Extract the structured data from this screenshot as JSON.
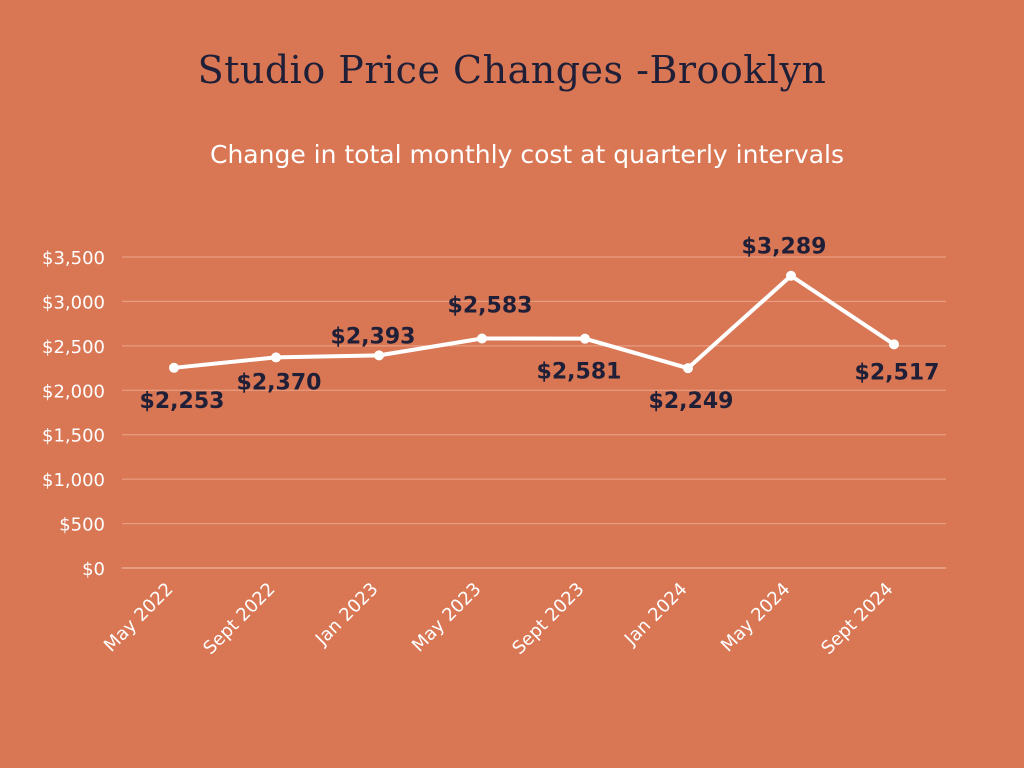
{
  "chart_data": {
    "type": "line",
    "title": "Studio Price Changes -Brooklyn",
    "subtitle": "Change in total monthly cost at quarterly intervals",
    "categories": [
      "May 2022",
      "Sept 2022",
      "Jan 2023",
      "May 2023",
      "Sept 2023",
      "Jan 2024",
      "May 2024",
      "Sept 2024"
    ],
    "series": [
      {
        "values": [
          2253,
          2370,
          2393,
          2583,
          2581,
          2249,
          3289,
          2517
        ],
        "labels": [
          "$2,253",
          "$2,370",
          "$2,393",
          "$2,583",
          "$2,581",
          "$2,249",
          "$3,289",
          "$2,517"
        ],
        "color": "#ffffff"
      }
    ],
    "y_ticks": [
      0,
      500,
      1000,
      1500,
      2000,
      2500,
      3000,
      3500
    ],
    "y_tick_labels": [
      "$0",
      "$500",
      "$1,000",
      "$1,500",
      "$2,000",
      "$2,500",
      "$3,000",
      "$3,500"
    ],
    "ylim": [
      0,
      3500
    ],
    "grid": true,
    "xlabel": "",
    "ylabel": "",
    "colors": {
      "background": "#d97755",
      "line": "#ffffff",
      "data_label": "#1f1f38",
      "grid": "#eaa68a"
    }
  }
}
